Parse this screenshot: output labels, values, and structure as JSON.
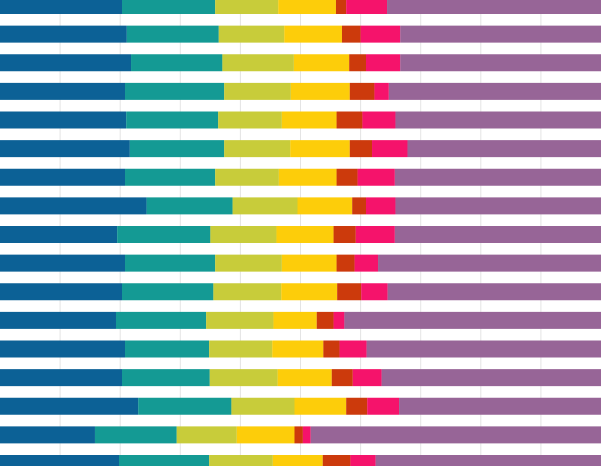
{
  "chart_data": {
    "type": "bar",
    "orientation": "horizontal",
    "stacked": true,
    "grid": true,
    "legend": "none",
    "title": "",
    "xlabel": "",
    "ylabel": "",
    "xlim": [
      0,
      100
    ],
    "colors": [
      "#0c6196",
      "#149a94",
      "#c8cc3a",
      "#fdcd0a",
      "#cc3a0c",
      "#f5136b",
      "#976597"
    ],
    "rows": [
      [
        20.3,
        15.5,
        10.5,
        9.6,
        1.7,
        6.8,
        35.6
      ],
      [
        21.1,
        15.3,
        10.9,
        9.6,
        3.1,
        6.6,
        33.4
      ],
      [
        21.8,
        15.2,
        11.9,
        9.2,
        2.8,
        5.7,
        33.4
      ],
      [
        20.8,
        16.5,
        11.1,
        9.8,
        4.1,
        2.4,
        35.3
      ],
      [
        21.0,
        15.3,
        10.6,
        9.1,
        4.3,
        5.5,
        34.2
      ],
      [
        21.6,
        15.7,
        11.0,
        9.9,
        3.7,
        5.9,
        32.2
      ],
      [
        20.8,
        15.0,
        10.6,
        9.6,
        3.5,
        6.2,
        34.3
      ],
      [
        24.4,
        14.3,
        10.8,
        9.1,
        2.3,
        4.9,
        34.2
      ],
      [
        19.5,
        15.5,
        11.0,
        9.5,
        3.7,
        6.5,
        34.3
      ],
      [
        20.8,
        15.0,
        11.1,
        9.1,
        3.0,
        3.9,
        37.1
      ],
      [
        20.3,
        15.2,
        11.3,
        9.3,
        4.0,
        4.4,
        35.5
      ],
      [
        19.3,
        15.0,
        11.2,
        7.2,
        2.8,
        1.8,
        43.5
      ],
      [
        20.8,
        14.0,
        10.5,
        8.5,
        2.7,
        4.5,
        39.0
      ],
      [
        20.3,
        14.6,
        11.3,
        9.0,
        3.5,
        4.8,
        36.5
      ],
      [
        23.0,
        15.5,
        10.5,
        8.6,
        3.5,
        5.3,
        33.6
      ],
      [
        15.8,
        13.6,
        10.0,
        9.6,
        1.4,
        1.3,
        48.3
      ],
      [
        19.8,
        15.0,
        10.6,
        8.3,
        4.6,
        4.2,
        37.5
      ]
    ]
  }
}
